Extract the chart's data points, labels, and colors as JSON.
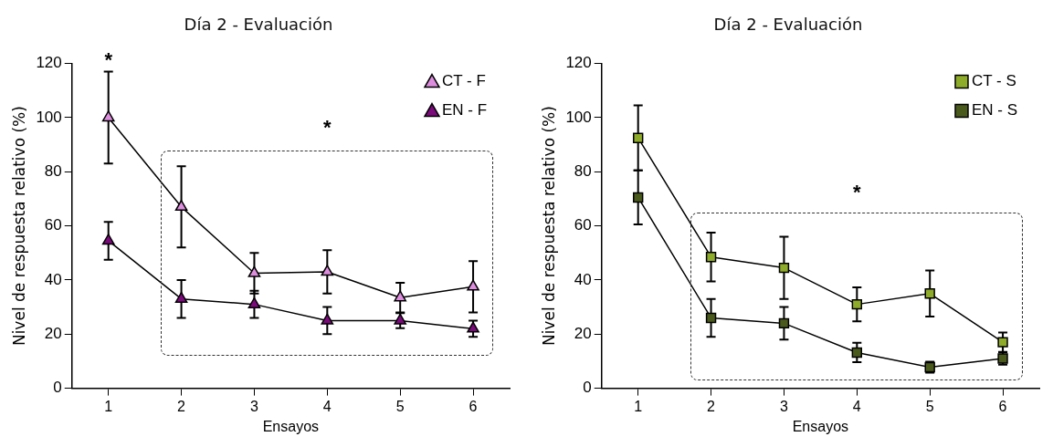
{
  "chart_data": [
    {
      "type": "line",
      "title": "Día 2 - Evaluación",
      "xlabel": "Ensayos",
      "ylabel": "Nivel de respuesta relativo (%)",
      "categories": [
        "1",
        "2",
        "3",
        "4",
        "5",
        "6"
      ],
      "ylim": [
        0,
        120
      ],
      "yticks": [
        0,
        20,
        40,
        60,
        80,
        100,
        120
      ],
      "grid": false,
      "legend": "top right",
      "marker": "triangle",
      "line_style": "solid",
      "series": [
        {
          "name": "CT - F",
          "color": "#dd8ddd",
          "values": [
            100,
            67,
            42.5,
            43,
            33.5,
            37.5
          ],
          "errors": [
            17,
            15,
            7.5,
            8,
            5.5,
            9.5
          ]
        },
        {
          "name": "EN - F",
          "color": "#7b0a7b",
          "values": [
            54.5,
            33,
            31,
            25,
            25,
            22
          ],
          "errors": [
            7,
            7,
            5,
            5,
            2.8,
            3
          ]
        }
      ],
      "annotations": [
        "*",
        "*"
      ]
    },
    {
      "type": "line",
      "title": "Día 2 - Evaluación",
      "xlabel": "Ensayos",
      "ylabel": "Nivel de respuesta relativo (%)",
      "categories": [
        "1",
        "2",
        "3",
        "4",
        "5",
        "6"
      ],
      "ylim": [
        0,
        120
      ],
      "yticks": [
        0,
        20,
        40,
        60,
        80,
        100,
        120
      ],
      "grid": false,
      "legend": "top right",
      "marker": "square",
      "line_style": "solid",
      "series": [
        {
          "name": "CT - S",
          "color": "#8fab2a",
          "values": [
            92.5,
            48.5,
            44.5,
            31,
            35,
            17
          ],
          "errors": [
            12,
            9,
            11.5,
            6.3,
            8.5,
            3.6
          ]
        },
        {
          "name": "EN - S",
          "color": "#4a5a1c",
          "values": [
            70.5,
            26,
            24,
            13.2,
            7.8,
            11
          ],
          "errors": [
            10,
            7,
            6,
            3.6,
            2,
            2.3
          ]
        }
      ],
      "annotations": [
        "*"
      ]
    }
  ]
}
